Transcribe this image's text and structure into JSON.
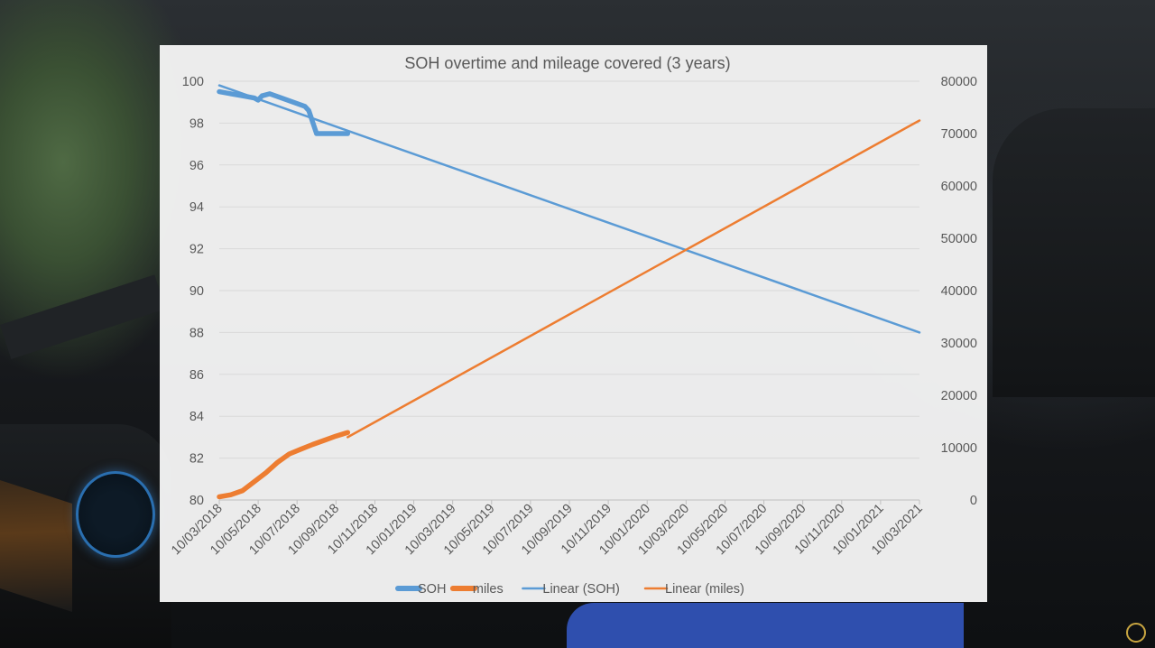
{
  "chart_data": {
    "type": "line",
    "title": "SOH overtime and mileage covered (3 years)",
    "x_tick_labels": [
      "10/03/2018",
      "10/05/2018",
      "10/07/2018",
      "10/09/2018",
      "10/11/2018",
      "10/01/2019",
      "10/03/2019",
      "10/05/2019",
      "10/07/2019",
      "10/09/2019",
      "10/11/2019",
      "10/01/2020",
      "10/03/2020",
      "10/05/2020",
      "10/07/2020",
      "10/09/2020",
      "10/11/2020",
      "10/01/2021",
      "10/03/2021"
    ],
    "y_left": {
      "lim": [
        80,
        100
      ],
      "ticks": [
        80,
        82,
        84,
        86,
        88,
        90,
        92,
        94,
        96,
        98,
        100
      ]
    },
    "y_right": {
      "lim": [
        0,
        80000
      ],
      "ticks": [
        0,
        10000,
        20000,
        30000,
        40000,
        50000,
        60000,
        70000,
        80000
      ]
    },
    "gridlines": true,
    "legend_position": "bottom",
    "series": [
      {
        "name": "SOH",
        "axis": "left",
        "color": "#5b9bd5",
        "style": "thick",
        "x": [
          0,
          0.3,
          0.6,
          0.9,
          1.0,
          1.1,
          1.3,
          1.6,
          1.9,
          2.2,
          2.3,
          2.5,
          2.7,
          3.0,
          3.3
        ],
        "values": [
          99.5,
          99.4,
          99.3,
          99.2,
          99.1,
          99.3,
          99.4,
          99.2,
          99.0,
          98.8,
          98.6,
          97.5,
          97.5,
          97.5,
          97.5
        ]
      },
      {
        "name": "miles",
        "axis": "right",
        "color": "#ed7d31",
        "style": "thick",
        "x": [
          0,
          0.3,
          0.6,
          0.9,
          1.2,
          1.5,
          1.8,
          2.1,
          2.4,
          2.7,
          3.0,
          3.3
        ],
        "values": [
          600,
          1000,
          1800,
          3500,
          5200,
          7200,
          8800,
          9700,
          10600,
          11400,
          12200,
          12900
        ]
      },
      {
        "name": "Linear (SOH)",
        "axis": "left",
        "color": "#5b9bd5",
        "style": "thin",
        "x": [
          0,
          18
        ],
        "values": [
          99.8,
          88.0
        ]
      },
      {
        "name": "Linear (miles)",
        "axis": "right",
        "color": "#ed7d31",
        "style": "thin",
        "x": [
          3.3,
          18
        ],
        "values": [
          12000,
          72500
        ]
      }
    ]
  },
  "overlay": {
    "logo_icon": "circle-logo-icon"
  }
}
